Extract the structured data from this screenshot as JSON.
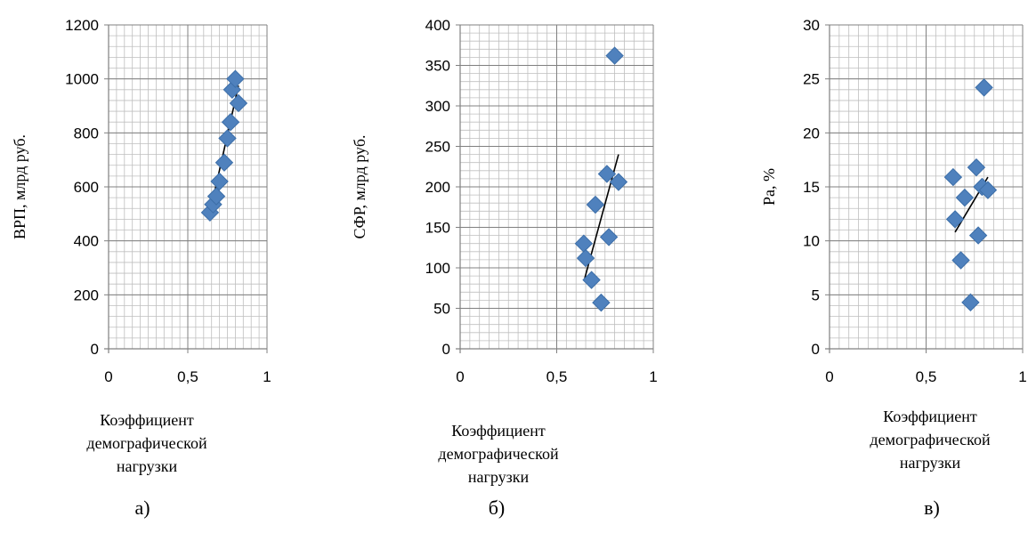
{
  "colors": {
    "marker": "#4f81bd",
    "marker_edge": "#3c6ea8",
    "grid": "#bfbfbf",
    "axis": "#808080",
    "trend": "#000000"
  },
  "chart_data": [
    {
      "type": "scatter",
      "panel_label": "а)",
      "ylabel": "ВРП, млрд руб.",
      "xlabel_lines": [
        "Коэффициент",
        "демографической",
        "нагрузки"
      ],
      "xlim": [
        0,
        1
      ],
      "ylim": [
        0,
        1200
      ],
      "xticks": [
        "0",
        "0,5",
        "1"
      ],
      "yticks": [
        "0",
        "200",
        "400",
        "600",
        "800",
        "1000",
        "1200"
      ],
      "grid": true,
      "points": [
        {
          "x": 0.64,
          "y": 505
        },
        {
          "x": 0.66,
          "y": 535
        },
        {
          "x": 0.68,
          "y": 565
        },
        {
          "x": 0.7,
          "y": 620
        },
        {
          "x": 0.73,
          "y": 690
        },
        {
          "x": 0.75,
          "y": 780
        },
        {
          "x": 0.77,
          "y": 840
        },
        {
          "x": 0.78,
          "y": 960
        },
        {
          "x": 0.8,
          "y": 1000
        },
        {
          "x": 0.82,
          "y": 910
        }
      ],
      "trendline": {
        "x": [
          0.64,
          0.82
        ],
        "y": [
          505,
          975
        ]
      }
    },
    {
      "type": "scatter",
      "panel_label": "б)",
      "ylabel": "СФР, млрд руб.",
      "xlabel_lines": [
        "Коэффициент",
        "демографической",
        "нагрузки"
      ],
      "xlim": [
        0,
        1
      ],
      "ylim": [
        0,
        400
      ],
      "xticks": [
        "0",
        "0,5",
        "1"
      ],
      "yticks": [
        "0",
        "50",
        "100",
        "150",
        "200",
        "250",
        "300",
        "350",
        "400"
      ],
      "grid": true,
      "points": [
        {
          "x": 0.64,
          "y": 130
        },
        {
          "x": 0.65,
          "y": 112
        },
        {
          "x": 0.68,
          "y": 85
        },
        {
          "x": 0.7,
          "y": 178
        },
        {
          "x": 0.73,
          "y": 57
        },
        {
          "x": 0.76,
          "y": 216
        },
        {
          "x": 0.77,
          "y": 138
        },
        {
          "x": 0.8,
          "y": 362
        },
        {
          "x": 0.82,
          "y": 206
        }
      ],
      "trendline": {
        "x": [
          0.645,
          0.82
        ],
        "y": [
          87,
          240
        ]
      }
    },
    {
      "type": "scatter",
      "panel_label": "в)",
      "ylabel": "Ра, %",
      "xlabel_lines": [
        "Коэффициент",
        "демографической",
        "нагрузки"
      ],
      "xlim": [
        0,
        1
      ],
      "ylim": [
        0,
        30
      ],
      "xticks": [
        "0",
        "0,5",
        "1"
      ],
      "yticks": [
        "0",
        "5",
        "10",
        "15",
        "20",
        "25",
        "30"
      ],
      "grid": true,
      "points": [
        {
          "x": 0.64,
          "y": 15.9
        },
        {
          "x": 0.65,
          "y": 12.0
        },
        {
          "x": 0.68,
          "y": 8.2
        },
        {
          "x": 0.7,
          "y": 14.0
        },
        {
          "x": 0.73,
          "y": 4.3
        },
        {
          "x": 0.76,
          "y": 16.8
        },
        {
          "x": 0.77,
          "y": 10.5
        },
        {
          "x": 0.79,
          "y": 15.0
        },
        {
          "x": 0.8,
          "y": 24.2
        },
        {
          "x": 0.82,
          "y": 14.7
        }
      ],
      "trendline": {
        "x": [
          0.65,
          0.82
        ],
        "y": [
          10.8,
          15.9
        ]
      }
    }
  ]
}
